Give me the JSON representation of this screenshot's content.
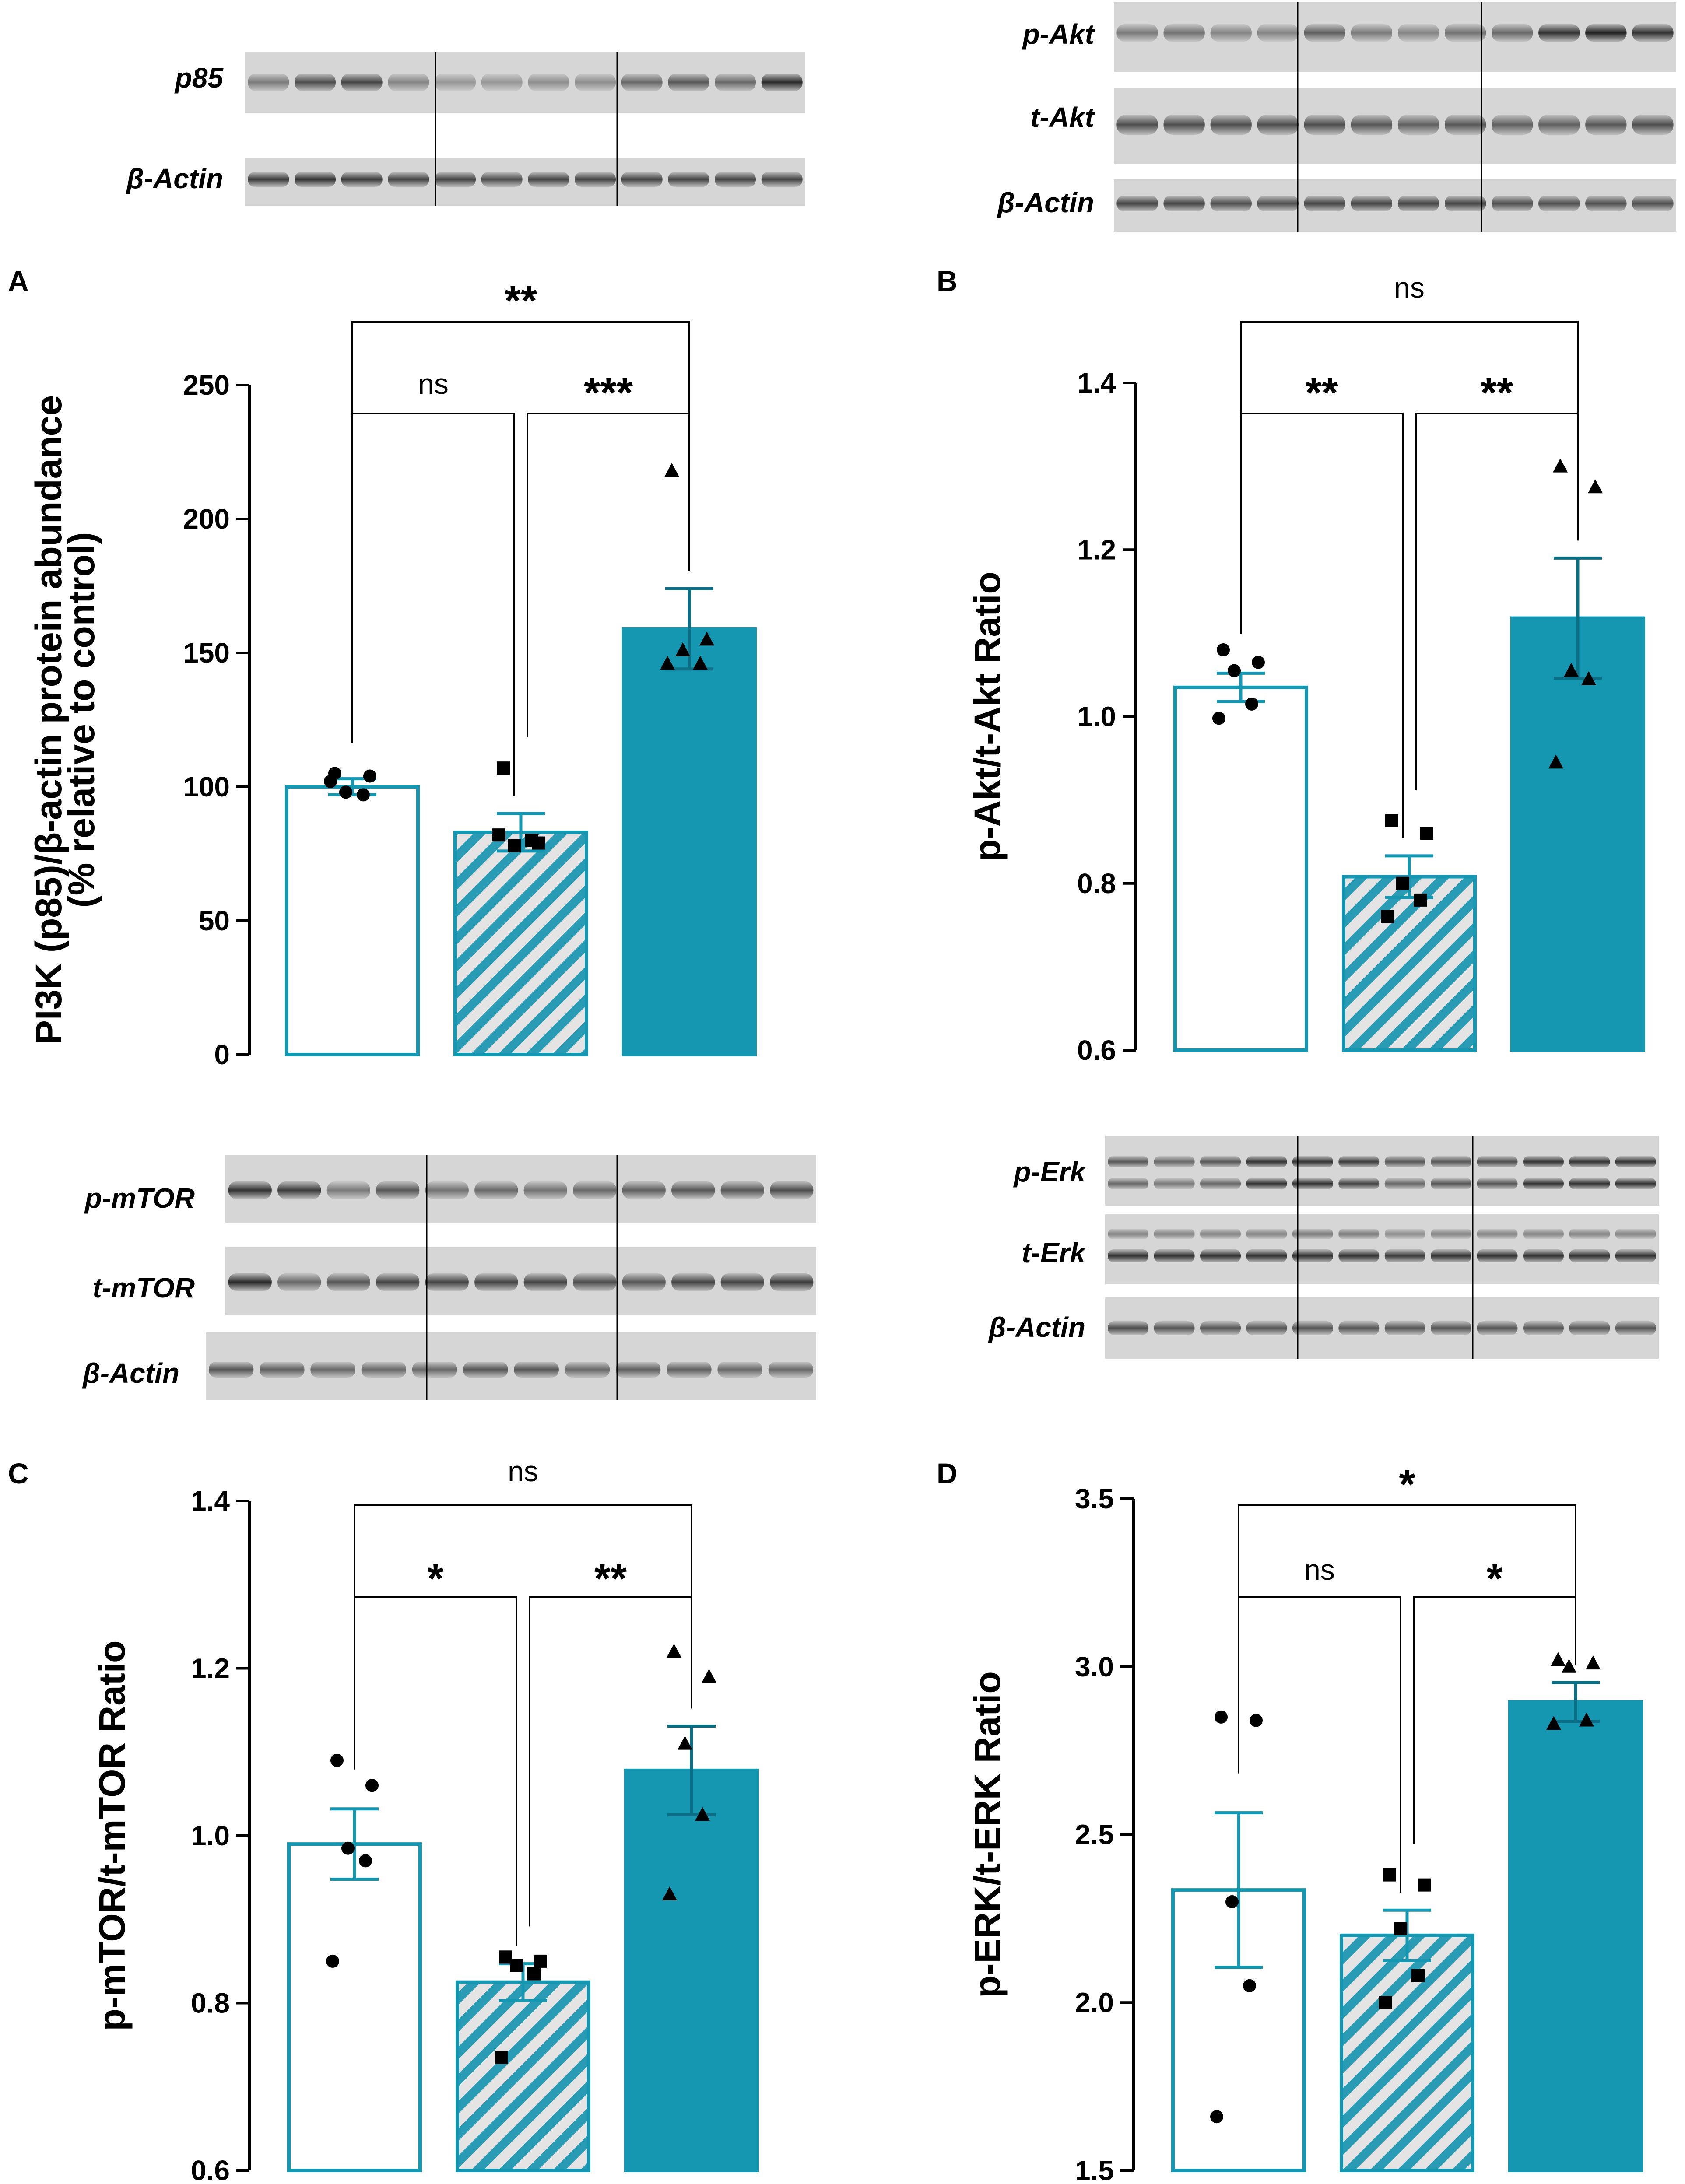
{
  "colors": {
    "teal": "#1597b2",
    "hatch_stripe": "#2a9bb5",
    "hatch_bg": "#e4e4e4",
    "black": "#000000"
  },
  "blot_labels": {
    "A": [
      "p85",
      "β-Actin"
    ],
    "B": [
      "p-Akt",
      "t-Akt",
      "β-Actin"
    ],
    "C": [
      "p-mTOR",
      "t-mTOR",
      "β-Actin"
    ],
    "D": [
      "p-Erk",
      "t-Erk",
      "β-Actin"
    ]
  },
  "chart_data": [
    {
      "panel": "A",
      "type": "bar",
      "ylabel_lines": [
        "PI3K (p85)/β-actin protein abundance",
        "(% relative to control)"
      ],
      "ylim": [
        0,
        250
      ],
      "yticks": [
        0,
        50,
        100,
        150,
        200,
        250
      ],
      "ytick_labels": [
        "0",
        "50",
        "100",
        "150",
        "200",
        "250"
      ],
      "bars": [
        {
          "style": "open",
          "mean": 100,
          "sem": 3
        },
        {
          "style": "hatched",
          "mean": 83,
          "sem": 7
        },
        {
          "style": "filled",
          "mean": 159,
          "sem": 15
        }
      ],
      "points": [
        {
          "bar": 0,
          "marker": "circle",
          "values": [
            105,
            104,
            98,
            97,
            102
          ]
        },
        {
          "bar": 1,
          "marker": "square",
          "values": [
            107,
            79,
            78,
            80,
            82
          ]
        },
        {
          "bar": 2,
          "marker": "triangle",
          "values": [
            218,
            155,
            151,
            146,
            146
          ]
        }
      ],
      "significance": [
        {
          "from": 0,
          "to": 2,
          "label": "**",
          "level": 2
        },
        {
          "from": 0,
          "to": 1,
          "label": "ns",
          "level": 1
        },
        {
          "from": 1,
          "to": 2,
          "label": "***",
          "level": 1
        }
      ]
    },
    {
      "panel": "B",
      "type": "bar",
      "ylabel_lines": [
        "p-Akt/t-Akt Ratio"
      ],
      "ylim": [
        0.6,
        1.4
      ],
      "yticks": [
        0.6,
        0.8,
        1.0,
        1.2,
        1.4
      ],
      "ytick_labels": [
        "0.6",
        "0.8",
        "1.0",
        "1.2",
        "1.4"
      ],
      "bars": [
        {
          "style": "open",
          "mean": 1.035,
          "sem": 0.017
        },
        {
          "style": "hatched",
          "mean": 0.808,
          "sem": 0.025
        },
        {
          "style": "filled",
          "mean": 1.118,
          "sem": 0.072
        }
      ],
      "points": [
        {
          "bar": 0,
          "marker": "circle",
          "values": [
            1.08,
            1.065,
            1.055,
            1.015,
            0.998
          ]
        },
        {
          "bar": 1,
          "marker": "square",
          "values": [
            0.875,
            0.86,
            0.8,
            0.78,
            0.76
          ]
        },
        {
          "bar": 2,
          "marker": "triangle",
          "values": [
            1.3,
            1.275,
            1.055,
            1.045,
            0.945
          ]
        }
      ],
      "significance": [
        {
          "from": 0,
          "to": 2,
          "label": "ns",
          "level": 2
        },
        {
          "from": 0,
          "to": 1,
          "label": "**",
          "level": 1
        },
        {
          "from": 1,
          "to": 2,
          "label": "**",
          "level": 1
        }
      ]
    },
    {
      "panel": "C",
      "type": "bar",
      "ylabel_lines": [
        "p-mTOR/t-mTOR Ratio"
      ],
      "ylim": [
        0.6,
        1.4
      ],
      "yticks": [
        0.6,
        0.8,
        1.0,
        1.2,
        1.4
      ],
      "ytick_labels": [
        "0.6",
        "0.8",
        "1.0",
        "1.2",
        "1.4"
      ],
      "bars": [
        {
          "style": "open",
          "mean": 0.99,
          "sem": 0.042
        },
        {
          "style": "hatched",
          "mean": 0.825,
          "sem": 0.022
        },
        {
          "style": "filled",
          "mean": 1.078,
          "sem": 0.053
        }
      ],
      "points": [
        {
          "bar": 0,
          "marker": "circle",
          "values": [
            1.09,
            1.06,
            0.985,
            0.97,
            0.85
          ]
        },
        {
          "bar": 1,
          "marker": "square",
          "values": [
            0.855,
            0.85,
            0.845,
            0.835,
            0.735
          ]
        },
        {
          "bar": 2,
          "marker": "triangle",
          "values": [
            1.22,
            1.19,
            1.11,
            1.025,
            0.93
          ]
        }
      ],
      "significance": [
        {
          "from": 0,
          "to": 2,
          "label": "ns",
          "level": 2
        },
        {
          "from": 0,
          "to": 1,
          "label": "*",
          "level": 1
        },
        {
          "from": 1,
          "to": 2,
          "label": "**",
          "level": 1
        }
      ]
    },
    {
      "panel": "D",
      "type": "bar",
      "ylabel_lines": [
        "p-ERK/t-ERK Ratio"
      ],
      "ylim": [
        1.5,
        3.5
      ],
      "yticks": [
        1.5,
        2.0,
        2.5,
        3.0,
        3.5
      ],
      "ytick_labels": [
        "1.5",
        "2.0",
        "2.5",
        "3.0",
        "3.5"
      ],
      "bars": [
        {
          "style": "open",
          "mean": 2.335,
          "sem": 0.23
        },
        {
          "style": "hatched",
          "mean": 2.2,
          "sem": 0.075
        },
        {
          "style": "filled",
          "mean": 2.895,
          "sem": 0.058
        }
      ],
      "points": [
        {
          "bar": 0,
          "marker": "circle",
          "values": [
            2.85,
            2.84,
            2.3,
            2.05,
            1.66
          ]
        },
        {
          "bar": 1,
          "marker": "square",
          "values": [
            2.38,
            2.35,
            2.22,
            2.08,
            2.0
          ]
        },
        {
          "bar": 2,
          "marker": "triangle",
          "values": [
            3.02,
            3.01,
            3.0,
            2.84,
            2.83
          ]
        }
      ],
      "significance": [
        {
          "from": 0,
          "to": 2,
          "label": "*",
          "level": 2
        },
        {
          "from": 0,
          "to": 1,
          "label": "ns",
          "level": 1
        },
        {
          "from": 1,
          "to": 2,
          "label": "*",
          "level": 1
        }
      ]
    }
  ]
}
